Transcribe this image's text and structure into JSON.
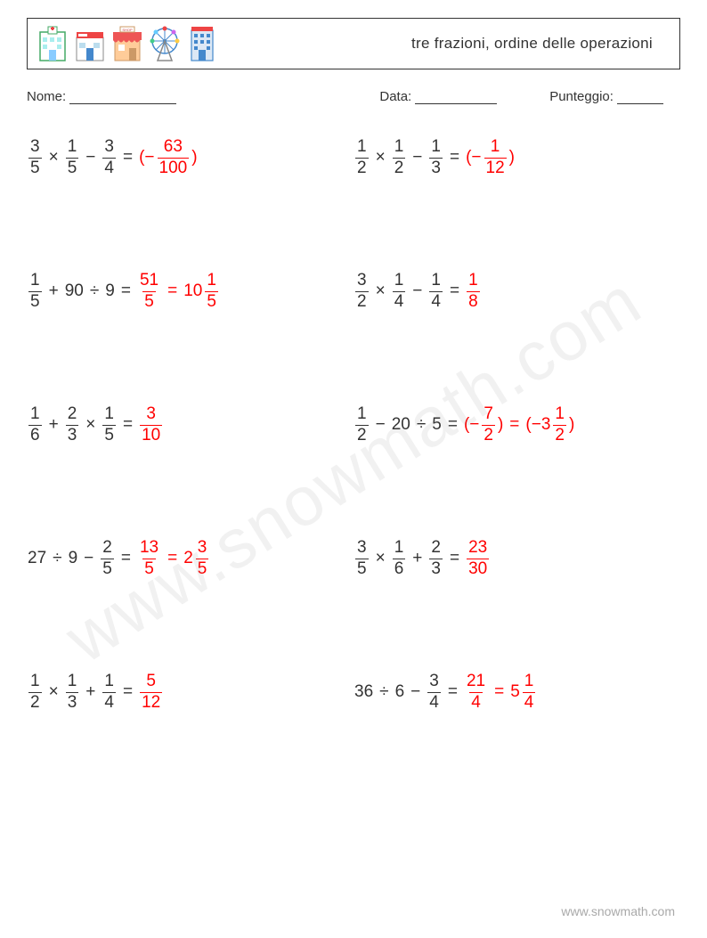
{
  "header": {
    "title": "tre frazioni, ordine delle operazioni"
  },
  "info": {
    "name_label": "Nome:",
    "date_label": "Data:",
    "score_label": "Punteggio:"
  },
  "watermark": "www.snowmath.com",
  "footer_url": "www.snowmath.com",
  "colors": {
    "text": "#333333",
    "answer": "#ff0000",
    "background": "#ffffff",
    "watermark": "rgba(120,120,120,0.10)",
    "footer": "#a9a9a9"
  },
  "icons": [
    "hospital-building",
    "pharmacy-building",
    "shop-building",
    "ferris-wheel",
    "office-building"
  ],
  "problems": [
    {
      "col": 0,
      "row": 0,
      "terms": [
        {
          "t": "frac",
          "n": "3",
          "d": "5"
        },
        {
          "t": "op",
          "v": "×"
        },
        {
          "t": "frac",
          "n": "1",
          "d": "5"
        },
        {
          "t": "op",
          "v": "−"
        },
        {
          "t": "frac",
          "n": "3",
          "d": "4"
        },
        {
          "t": "op",
          "v": "="
        },
        {
          "t": "ans",
          "parts": [
            {
              "t": "txt",
              "v": "(−"
            },
            {
              "t": "frac",
              "n": "63",
              "d": "100"
            },
            {
              "t": "txt",
              "v": ")"
            }
          ]
        }
      ]
    },
    {
      "col": 1,
      "row": 0,
      "terms": [
        {
          "t": "frac",
          "n": "1",
          "d": "2"
        },
        {
          "t": "op",
          "v": "×"
        },
        {
          "t": "frac",
          "n": "1",
          "d": "2"
        },
        {
          "t": "op",
          "v": "−"
        },
        {
          "t": "frac",
          "n": "1",
          "d": "3"
        },
        {
          "t": "op",
          "v": "="
        },
        {
          "t": "ans",
          "parts": [
            {
              "t": "txt",
              "v": "(−"
            },
            {
              "t": "frac",
              "n": "1",
              "d": "12"
            },
            {
              "t": "txt",
              "v": ")"
            }
          ]
        }
      ]
    },
    {
      "col": 0,
      "row": 1,
      "terms": [
        {
          "t": "frac",
          "n": "1",
          "d": "5"
        },
        {
          "t": "op",
          "v": "+"
        },
        {
          "t": "int",
          "v": "90"
        },
        {
          "t": "op",
          "v": "÷"
        },
        {
          "t": "int",
          "v": "9"
        },
        {
          "t": "op",
          "v": "="
        },
        {
          "t": "ans",
          "parts": [
            {
              "t": "frac",
              "n": "51",
              "d": "5"
            },
            {
              "t": "op",
              "v": "="
            },
            {
              "t": "int",
              "v": "10"
            },
            {
              "t": "frac",
              "n": "1",
              "d": "5"
            }
          ]
        }
      ]
    },
    {
      "col": 1,
      "row": 1,
      "terms": [
        {
          "t": "frac",
          "n": "3",
          "d": "2"
        },
        {
          "t": "op",
          "v": "×"
        },
        {
          "t": "frac",
          "n": "1",
          "d": "4"
        },
        {
          "t": "op",
          "v": "−"
        },
        {
          "t": "frac",
          "n": "1",
          "d": "4"
        },
        {
          "t": "op",
          "v": "="
        },
        {
          "t": "ans",
          "parts": [
            {
              "t": "frac",
              "n": "1",
              "d": "8"
            }
          ]
        }
      ]
    },
    {
      "col": 0,
      "row": 2,
      "terms": [
        {
          "t": "frac",
          "n": "1",
          "d": "6"
        },
        {
          "t": "op",
          "v": "+"
        },
        {
          "t": "frac",
          "n": "2",
          "d": "3"
        },
        {
          "t": "op",
          "v": "×"
        },
        {
          "t": "frac",
          "n": "1",
          "d": "5"
        },
        {
          "t": "op",
          "v": "="
        },
        {
          "t": "ans",
          "parts": [
            {
              "t": "frac",
              "n": "3",
              "d": "10"
            }
          ]
        }
      ]
    },
    {
      "col": 1,
      "row": 2,
      "terms": [
        {
          "t": "frac",
          "n": "1",
          "d": "2"
        },
        {
          "t": "op",
          "v": "−"
        },
        {
          "t": "int",
          "v": "20"
        },
        {
          "t": "op",
          "v": "÷"
        },
        {
          "t": "int",
          "v": "5"
        },
        {
          "t": "op",
          "v": "="
        },
        {
          "t": "ans",
          "parts": [
            {
              "t": "txt",
              "v": "(−"
            },
            {
              "t": "frac",
              "n": "7",
              "d": "2"
            },
            {
              "t": "txt",
              "v": ")"
            },
            {
              "t": "op",
              "v": "="
            },
            {
              "t": "txt",
              "v": "(−3"
            },
            {
              "t": "frac",
              "n": "1",
              "d": "2"
            },
            {
              "t": "txt",
              "v": ")"
            }
          ]
        }
      ]
    },
    {
      "col": 0,
      "row": 3,
      "terms": [
        {
          "t": "int",
          "v": "27"
        },
        {
          "t": "op",
          "v": "÷"
        },
        {
          "t": "int",
          "v": "9"
        },
        {
          "t": "op",
          "v": "−"
        },
        {
          "t": "frac",
          "n": "2",
          "d": "5"
        },
        {
          "t": "op",
          "v": "="
        },
        {
          "t": "ans",
          "parts": [
            {
              "t": "frac",
              "n": "13",
              "d": "5"
            },
            {
              "t": "op",
              "v": "="
            },
            {
              "t": "int",
              "v": "2"
            },
            {
              "t": "frac",
              "n": "3",
              "d": "5"
            }
          ]
        }
      ]
    },
    {
      "col": 1,
      "row": 3,
      "terms": [
        {
          "t": "frac",
          "n": "3",
          "d": "5"
        },
        {
          "t": "op",
          "v": "×"
        },
        {
          "t": "frac",
          "n": "1",
          "d": "6"
        },
        {
          "t": "op",
          "v": "+"
        },
        {
          "t": "frac",
          "n": "2",
          "d": "3"
        },
        {
          "t": "op",
          "v": "="
        },
        {
          "t": "ans",
          "parts": [
            {
              "t": "frac",
              "n": "23",
              "d": "30"
            }
          ]
        }
      ]
    },
    {
      "col": 0,
      "row": 4,
      "terms": [
        {
          "t": "frac",
          "n": "1",
          "d": "2"
        },
        {
          "t": "op",
          "v": "×"
        },
        {
          "t": "frac",
          "n": "1",
          "d": "3"
        },
        {
          "t": "op",
          "v": "+"
        },
        {
          "t": "frac",
          "n": "1",
          "d": "4"
        },
        {
          "t": "op",
          "v": "="
        },
        {
          "t": "ans",
          "parts": [
            {
              "t": "frac",
              "n": "5",
              "d": "12"
            }
          ]
        }
      ]
    },
    {
      "col": 1,
      "row": 4,
      "terms": [
        {
          "t": "int",
          "v": "36"
        },
        {
          "t": "op",
          "v": "÷"
        },
        {
          "t": "int",
          "v": "6"
        },
        {
          "t": "op",
          "v": "−"
        },
        {
          "t": "frac",
          "n": "3",
          "d": "4"
        },
        {
          "t": "op",
          "v": "="
        },
        {
          "t": "ans",
          "parts": [
            {
              "t": "frac",
              "n": "21",
              "d": "4"
            },
            {
              "t": "op",
              "v": "="
            },
            {
              "t": "int",
              "v": "5"
            },
            {
              "t": "frac",
              "n": "1",
              "d": "4"
            }
          ]
        }
      ]
    }
  ]
}
